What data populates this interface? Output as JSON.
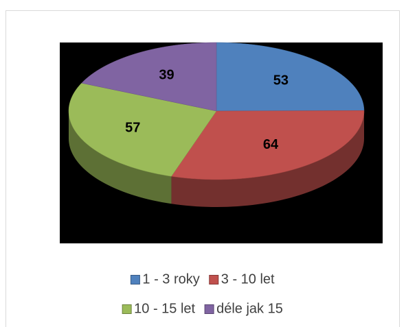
{
  "chart_data": {
    "type": "pie",
    "categories": [
      "1 - 3 roky",
      "3 - 10 let",
      "10 - 15 let",
      "déle jak 15"
    ],
    "values": [
      53,
      64,
      57,
      39
    ],
    "colors": [
      "#4f81bd",
      "#c0504d",
      "#9bbb59",
      "#8064a2"
    ],
    "legend": "bottom"
  }
}
